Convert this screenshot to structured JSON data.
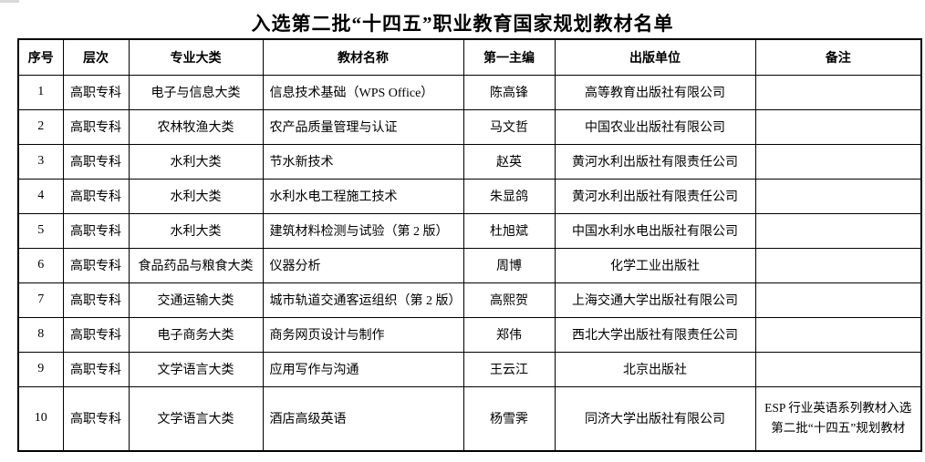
{
  "title": "入选第二批“十四五”职业教育国家规划教材名单",
  "table": {
    "headers": [
      "序号",
      "层次",
      "专业大类",
      "教材名称",
      "第一主编",
      "出版单位",
      "备注"
    ],
    "rows": [
      {
        "seq": "1",
        "level": "高职专科",
        "category": "电子与信息大类",
        "book": "信息技术基础（WPS Office）",
        "editor": "陈高锋",
        "publisher": "高等教育出版社有限公司",
        "remark": ""
      },
      {
        "seq": "2",
        "level": "高职专科",
        "category": "农林牧渔大类",
        "book": "农产品质量管理与认证",
        "editor": "马文哲",
        "publisher": "中国农业出版社有限公司",
        "remark": ""
      },
      {
        "seq": "3",
        "level": "高职专科",
        "category": "水利大类",
        "book": "节水新技术",
        "editor": "赵英",
        "publisher": "黄河水利出版社有限责任公司",
        "remark": ""
      },
      {
        "seq": "4",
        "level": "高职专科",
        "category": "水利大类",
        "book": "水利水电工程施工技术",
        "editor": "朱显鸽",
        "publisher": "黄河水利出版社有限责任公司",
        "remark": ""
      },
      {
        "seq": "5",
        "level": "高职专科",
        "category": "水利大类",
        "book": "建筑材料检测与试验（第 2 版）",
        "editor": "杜旭斌",
        "publisher": "中国水利水电出版社有限公司",
        "remark": ""
      },
      {
        "seq": "6",
        "level": "高职专科",
        "category": "食品药品与粮食大类",
        "book": "仪器分析",
        "editor": "周博",
        "publisher": "化学工业出版社",
        "remark": ""
      },
      {
        "seq": "7",
        "level": "高职专科",
        "category": "交通运输大类",
        "book": "城市轨道交通客运组织（第 2 版）",
        "editor": "高熙贺",
        "publisher": "上海交通大学出版社有限公司",
        "remark": ""
      },
      {
        "seq": "8",
        "level": "高职专科",
        "category": "电子商务大类",
        "book": "商务网页设计与制作",
        "editor": "郑伟",
        "publisher": "西北大学出版社有限责任公司",
        "remark": ""
      },
      {
        "seq": "9",
        "level": "高职专科",
        "category": "文学语言大类",
        "book": "应用写作与沟通",
        "editor": "王云江",
        "publisher": "北京出版社",
        "remark": ""
      },
      {
        "seq": "10",
        "level": "高职专科",
        "category": "文学语言大类",
        "book": "酒店高级英语",
        "editor": "杨雪霁",
        "publisher": "同济大学出版社有限公司",
        "remark": "ESP 行业英语系列教材入选第二批“十四五”规划教材"
      }
    ]
  }
}
